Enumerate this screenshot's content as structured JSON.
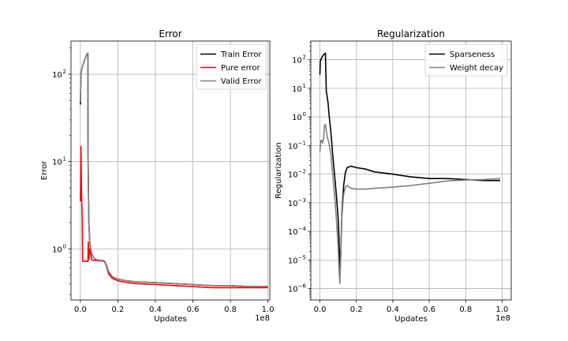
{
  "chart_data": [
    {
      "type": "line",
      "title": "Error",
      "xlabel": "Updates",
      "ylabel": "Error",
      "x_offset_text": "1e8",
      "x_scale": "linear",
      "y_scale": "log",
      "xlim": [
        -0.05,
        1.01
      ],
      "ylim": [
        0.26,
        240
      ],
      "grid": true,
      "legend_position": "upper right",
      "x_ticks": [
        0.0,
        0.2,
        0.4,
        0.6,
        0.8,
        1.0
      ],
      "x_tick_labels": [
        "0.0",
        "0.2",
        "0.4",
        "0.6",
        "0.8",
        "1.0"
      ],
      "y_ticks": [
        1,
        10,
        100
      ],
      "y_tick_labels": [
        "10",
        "10",
        "10"
      ],
      "y_tick_exponents": [
        "0",
        "1",
        "2"
      ],
      "series": [
        {
          "name": "Train Error",
          "color": "#000000",
          "x": [
            0.0,
            0.003,
            0.006,
            0.01,
            0.015,
            0.02,
            0.025,
            0.03,
            0.035,
            0.04,
            0.041,
            0.045,
            0.05,
            0.055,
            0.06,
            0.07,
            0.08,
            0.1,
            0.12,
            0.13,
            0.14,
            0.15,
            0.17,
            0.2,
            0.25,
            0.3,
            0.4,
            0.5,
            0.6,
            0.7,
            0.8,
            0.9,
            1.0
          ],
          "y": [
            45,
            100,
            110,
            120,
            130,
            140,
            150,
            160,
            170,
            175,
            12,
            2.0,
            1.2,
            1.0,
            0.88,
            0.8,
            0.76,
            0.74,
            0.74,
            0.72,
            0.64,
            0.55,
            0.48,
            0.45,
            0.43,
            0.42,
            0.41,
            0.4,
            0.39,
            0.38,
            0.38,
            0.37,
            0.37
          ]
        },
        {
          "name": "Pure error",
          "color": "#ff0000",
          "x": [
            0.0,
            0.003,
            0.006,
            0.01,
            0.012,
            0.02,
            0.03,
            0.04,
            0.042,
            0.045,
            0.05,
            0.06,
            0.07,
            0.08,
            0.1,
            0.12,
            0.13,
            0.14,
            0.15,
            0.17,
            0.2,
            0.25,
            0.3,
            0.4,
            0.5,
            0.6,
            0.7,
            0.8,
            0.9,
            1.0
          ],
          "y": [
            3.5,
            15,
            4.5,
            2.0,
            0.72,
            0.72,
            0.72,
            0.72,
            1.2,
            0.75,
            1.0,
            0.75,
            0.74,
            0.74,
            0.73,
            0.73,
            0.71,
            0.62,
            0.52,
            0.46,
            0.43,
            0.41,
            0.4,
            0.39,
            0.38,
            0.37,
            0.36,
            0.36,
            0.36,
            0.36
          ]
        },
        {
          "name": "Valid Error",
          "color": "#808080",
          "x": [
            0.0,
            0.003,
            0.006,
            0.01,
            0.015,
            0.02,
            0.025,
            0.03,
            0.035,
            0.04,
            0.041,
            0.045,
            0.05,
            0.055,
            0.06,
            0.07,
            0.08,
            0.1,
            0.12,
            0.13,
            0.14,
            0.15,
            0.17,
            0.2,
            0.25,
            0.3,
            0.4,
            0.5,
            0.6,
            0.7,
            0.8,
            0.9,
            1.0
          ],
          "y": [
            48,
            100,
            110,
            120,
            130,
            140,
            150,
            160,
            170,
            175,
            12,
            2.0,
            1.2,
            1.0,
            0.88,
            0.8,
            0.76,
            0.74,
            0.74,
            0.72,
            0.64,
            0.55,
            0.48,
            0.45,
            0.43,
            0.42,
            0.41,
            0.4,
            0.39,
            0.38,
            0.38,
            0.37,
            0.37
          ]
        }
      ]
    },
    {
      "type": "line",
      "title": "Regularization",
      "xlabel": "Updates",
      "ylabel": "Regularization",
      "x_offset_text": "1e8",
      "x_scale": "linear",
      "y_scale": "log",
      "xlim": [
        -0.05,
        1.05
      ],
      "ylim": [
        4e-07,
        450
      ],
      "grid": true,
      "legend_position": "upper right",
      "x_ticks": [
        0.0,
        0.2,
        0.4,
        0.6,
        0.8,
        1.0
      ],
      "x_tick_labels": [
        "0.0",
        "0.2",
        "0.4",
        "0.6",
        "0.8",
        "1.0"
      ],
      "y_ticks": [
        1e-06,
        1e-05,
        0.0001,
        0.001,
        0.01,
        0.1,
        1,
        10,
        100
      ],
      "y_tick_labels": [
        "10",
        "10",
        "10",
        "10",
        "10",
        "10",
        "10",
        "10",
        "10"
      ],
      "y_tick_exponents": [
        "−6",
        "−5",
        "−4",
        "−3",
        "−2",
        "−1",
        "0",
        "1",
        "2"
      ],
      "series": [
        {
          "name": "Sparseness",
          "color": "#000000",
          "x": [
            0.0,
            0.002,
            0.005,
            0.01,
            0.02,
            0.03,
            0.035,
            0.04,
            0.045,
            0.05,
            0.06,
            0.07,
            0.08,
            0.09,
            0.1,
            0.105,
            0.11,
            0.115,
            0.12,
            0.13,
            0.14,
            0.15,
            0.17,
            0.2,
            0.25,
            0.3,
            0.4,
            0.5,
            0.6,
            0.7,
            0.8,
            0.9,
            0.99
          ],
          "y": [
            30,
            90,
            100,
            120,
            150,
            170,
            8,
            5,
            3,
            1.2,
            0.3,
            0.05,
            0.01,
            0.002,
            0.0003,
            5e-05,
            5e-06,
            2e-05,
            0.0004,
            0.004,
            0.012,
            0.017,
            0.019,
            0.017,
            0.015,
            0.012,
            0.01,
            0.008,
            0.007,
            0.007,
            0.0065,
            0.006,
            0.006
          ]
        },
        {
          "name": "Weight decay",
          "color": "#808080",
          "x": [
            0.0,
            0.005,
            0.01,
            0.015,
            0.02,
            0.025,
            0.03,
            0.035,
            0.04,
            0.05,
            0.06,
            0.07,
            0.08,
            0.09,
            0.1,
            0.105,
            0.11,
            0.115,
            0.12,
            0.13,
            0.14,
            0.15,
            0.17,
            0.2,
            0.25,
            0.3,
            0.4,
            0.5,
            0.6,
            0.7,
            0.8,
            0.9,
            0.99
          ],
          "y": [
            0.06,
            0.15,
            0.15,
            0.12,
            0.18,
            0.5,
            0.55,
            0.35,
            0.2,
            0.12,
            0.05,
            0.01,
            0.002,
            0.0003,
            3e-05,
            4e-06,
            1.5e-06,
            2e-05,
            0.0003,
            0.002,
            0.0035,
            0.004,
            0.0032,
            0.003,
            0.003,
            0.0032,
            0.0035,
            0.004,
            0.0048,
            0.0058,
            0.0062,
            0.0065,
            0.007
          ]
        }
      ]
    }
  ]
}
